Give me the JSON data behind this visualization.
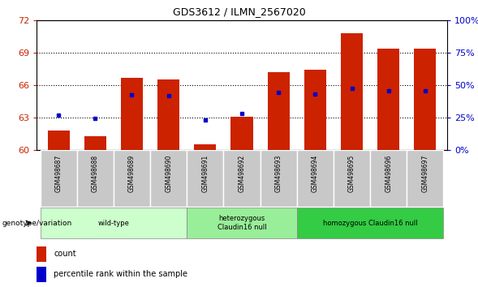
{
  "title": "GDS3612 / ILMN_2567020",
  "samples": [
    "GSM498687",
    "GSM498688",
    "GSM498689",
    "GSM498690",
    "GSM498691",
    "GSM498692",
    "GSM498693",
    "GSM498694",
    "GSM498695",
    "GSM498696",
    "GSM498697"
  ],
  "bar_heights": [
    61.8,
    61.3,
    66.7,
    66.5,
    60.5,
    63.1,
    67.2,
    67.4,
    70.8,
    69.4,
    69.4
  ],
  "blue_dot_values": [
    63.2,
    62.9,
    65.1,
    65.0,
    62.8,
    63.4,
    65.3,
    65.2,
    65.7,
    65.5,
    65.5
  ],
  "bar_bottom": 60,
  "ylim_left": [
    60,
    72
  ],
  "ylim_right": [
    0,
    100
  ],
  "yticks_left": [
    60,
    63,
    66,
    69,
    72
  ],
  "yticks_right": [
    0,
    25,
    50,
    75,
    100
  ],
  "bar_color": "#cc2200",
  "blue_dot_color": "#0000cc",
  "grid_color": "#000000",
  "groups": [
    {
      "label": "wild-type",
      "indices": [
        0,
        1,
        2,
        3
      ],
      "color": "#ccffcc"
    },
    {
      "label": "heterozygous\nClaudin16 null",
      "indices": [
        4,
        5,
        6
      ],
      "color": "#99ee99"
    },
    {
      "label": "homozygous Claudin16 null",
      "indices": [
        7,
        8,
        9,
        10
      ],
      "color": "#33cc44"
    }
  ],
  "genotype_label": "genotype/variation",
  "legend_count_label": "count",
  "legend_percentile_label": "percentile rank within the sample",
  "tick_label_color_left": "#cc2200",
  "tick_label_color_right": "#0000cc",
  "bg_color": "#ffffff",
  "sample_box_color": "#c8c8c8"
}
